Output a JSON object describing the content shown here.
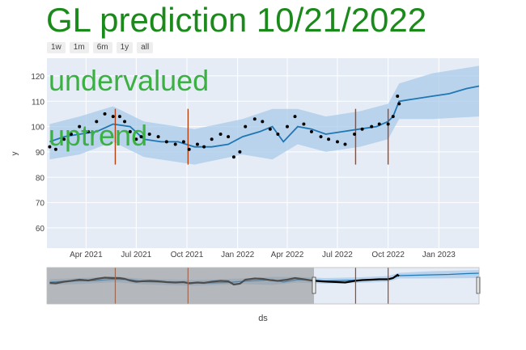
{
  "title": "GL prediction 10/21/2022",
  "range_buttons": [
    "1w",
    "1m",
    "6m",
    "1y",
    "all"
  ],
  "annotations": [
    "undervalued",
    "uptrend"
  ],
  "colors": {
    "title": "#1a8a1a",
    "annotation": "#3cb043",
    "plot_bg": "#e5ecf6",
    "band": "#a9cbe9",
    "trend": "#1f77b4",
    "marker": "#000000",
    "changepoint": "#b5400f",
    "slider_mask": "#8c8c8c"
  },
  "chart_data": {
    "type": "scatter",
    "xlabel": "ds",
    "ylabel": "y",
    "ylim": [
      52,
      127
    ],
    "yticks": [
      60,
      70,
      80,
      90,
      100,
      110,
      120
    ],
    "xticks": [
      "Apr 2021",
      "Jul 2021",
      "Oct 2021",
      "Jan 2022",
      "Apr 2022",
      "Jul 2022",
      "Oct 2022",
      "Jan 2023"
    ],
    "x_range": [
      "2021-01-20",
      "2023-03-15"
    ],
    "grid": true,
    "legend": "none",
    "changepoints": [
      "2021-05-24",
      "2021-10-03",
      "2022-08-03",
      "2022-10-01"
    ],
    "series": [
      {
        "kind": "observed",
        "x": [
          "2021-01-25",
          "2021-02-05",
          "2021-02-20",
          "2021-03-05",
          "2021-03-20",
          "2021-04-05",
          "2021-04-20",
          "2021-05-05",
          "2021-05-20",
          "2021-06-01",
          "2021-06-10",
          "2021-06-20",
          "2021-07-01",
          "2021-07-10",
          "2021-07-25",
          "2021-08-10",
          "2021-08-25",
          "2021-09-10",
          "2021-09-25",
          "2021-10-05",
          "2021-10-20",
          "2021-11-01",
          "2021-11-15",
          "2021-12-01",
          "2021-12-15",
          "2021-12-25",
          "2022-01-05",
          "2022-01-15",
          "2022-02-01",
          "2022-02-15",
          "2022-03-01",
          "2022-03-15",
          "2022-04-01",
          "2022-04-15",
          "2022-05-01",
          "2022-05-15",
          "2022-06-01",
          "2022-06-15",
          "2022-07-01",
          "2022-07-15",
          "2022-08-01",
          "2022-08-15",
          "2022-09-01",
          "2022-09-15",
          "2022-10-01",
          "2022-10-10",
          "2022-10-18",
          "2022-10-21"
        ],
        "y": [
          92,
          91,
          95,
          97,
          100,
          98,
          102,
          105,
          104,
          104,
          102,
          98,
          95,
          96,
          97,
          96,
          94,
          93,
          94,
          91,
          93,
          92,
          95,
          97,
          96,
          88,
          90,
          100,
          103,
          102,
          99,
          97,
          100,
          104,
          101,
          98,
          96,
          95,
          94,
          93,
          97,
          99,
          100,
          101,
          101,
          104,
          112,
          109
        ]
      },
      {
        "kind": "trend",
        "x": [
          "2021-01-25",
          "2021-02-20",
          "2021-03-20",
          "2021-04-20",
          "2021-05-20",
          "2021-06-20",
          "2021-07-15",
          "2021-08-15",
          "2021-09-15",
          "2021-10-15",
          "2021-11-15",
          "2021-12-15",
          "2022-01-10",
          "2022-02-10",
          "2022-03-05",
          "2022-03-25",
          "2022-04-20",
          "2022-05-15",
          "2022-06-10",
          "2022-07-10",
          "2022-08-10",
          "2022-09-10",
          "2022-10-01",
          "2022-10-10",
          "2022-10-21",
          "2022-11-20",
          "2022-12-20",
          "2023-01-20",
          "2023-02-20",
          "2023-03-15"
        ],
        "y": [
          94,
          96,
          97,
          98,
          101,
          100,
          95,
          94,
          94,
          92,
          92,
          93,
          96,
          98,
          100,
          94,
          100,
          99,
          97,
          98,
          99,
          100,
          102,
          104,
          110,
          111,
          112,
          113,
          115,
          116
        ]
      },
      {
        "kind": "uncertainty_upper",
        "x": [
          "2021-01-25",
          "2021-03-20",
          "2021-05-20",
          "2021-07-15",
          "2021-10-15",
          "2022-01-10",
          "2022-03-05",
          "2022-04-20",
          "2022-06-10",
          "2022-08-10",
          "2022-10-01",
          "2022-10-21",
          "2022-12-20",
          "2023-03-15"
        ],
        "y": [
          101,
          104,
          108,
          102,
          99,
          103,
          107,
          107,
          104,
          106,
          109,
          117,
          121,
          124
        ]
      },
      {
        "kind": "uncertainty_lower",
        "x": [
          "2021-01-25",
          "2021-03-20",
          "2021-05-20",
          "2021-07-15",
          "2021-10-15",
          "2022-01-10",
          "2022-03-05",
          "2022-04-20",
          "2022-06-10",
          "2022-08-10",
          "2022-10-01",
          "2022-10-21",
          "2022-12-20",
          "2023-03-15"
        ],
        "y": [
          87,
          89,
          94,
          88,
          85,
          89,
          87,
          93,
          90,
          92,
          95,
          103,
          103,
          104
        ]
      }
    ]
  }
}
